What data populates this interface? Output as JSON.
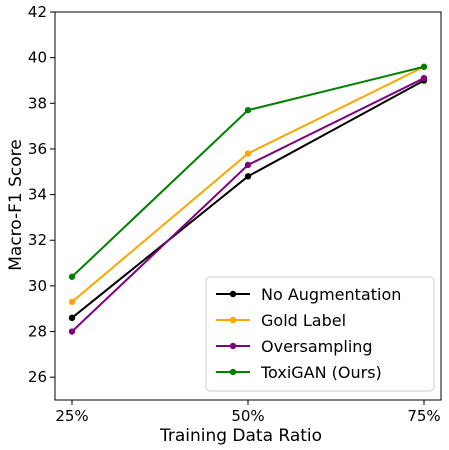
{
  "chart_data": {
    "type": "line",
    "title": "",
    "xlabel": "Training Data Ratio",
    "ylabel": "Macro-F1 Score",
    "categories": [
      "25%",
      "50%",
      "75%"
    ],
    "ylim": [
      25,
      42
    ],
    "yticks": [
      26,
      28,
      30,
      32,
      34,
      36,
      38,
      40,
      42
    ],
    "grid": false,
    "legend_position": "lower-right",
    "series": [
      {
        "name": "No Augmentation",
        "color": "#000000",
        "values": [
          28.6,
          34.8,
          39.0
        ]
      },
      {
        "name": "Gold Label",
        "color": "#FFA500",
        "values": [
          29.3,
          35.8,
          39.6
        ]
      },
      {
        "name": "Oversampling",
        "color": "#800080",
        "values": [
          28.0,
          35.3,
          39.1
        ]
      },
      {
        "name": "ToxiGAN (Ours)",
        "color": "#008000",
        "values": [
          30.4,
          37.7,
          39.6
        ]
      }
    ]
  }
}
